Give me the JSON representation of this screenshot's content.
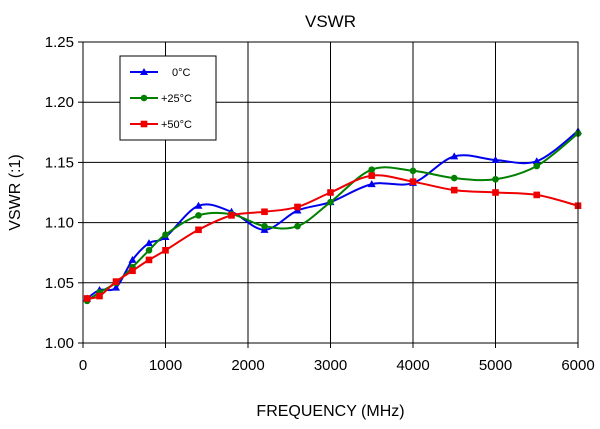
{
  "chart_data": {
    "type": "line",
    "title": "VSWR",
    "xlabel": "FREQUENCY (MHz)",
    "ylabel": "VSWR (:1)",
    "xlim": [
      0,
      6000
    ],
    "ylim": [
      1.0,
      1.25
    ],
    "xticks": [
      0,
      1000,
      2000,
      3000,
      4000,
      5000,
      6000
    ],
    "yticks": [
      1.0,
      1.05,
      1.1,
      1.15,
      1.2,
      1.25
    ],
    "xtick_labels": [
      "0",
      "1000",
      "2000",
      "3000",
      "4000",
      "5000",
      "6000"
    ],
    "ytick_labels": [
      "1.00",
      "1.05",
      "1.10",
      "1.15",
      "1.20",
      "1.25"
    ],
    "grid": true,
    "legend_position": "top-left",
    "series": [
      {
        "name": "0°C",
        "color": "#0000ee",
        "marker": "triangle",
        "x": [
          50,
          200,
          400,
          600,
          800,
          1000,
          1400,
          1800,
          2200,
          2600,
          3000,
          3500,
          4000,
          4500,
          5000,
          5500,
          6000
        ],
        "y": [
          1.037,
          1.044,
          1.046,
          1.069,
          1.083,
          1.088,
          1.114,
          1.109,
          1.094,
          1.11,
          1.117,
          1.132,
          1.133,
          1.155,
          1.152,
          1.151,
          1.176
        ]
      },
      {
        "name": "+25°C",
        "color": "#008000",
        "marker": "circle",
        "x": [
          50,
          200,
          400,
          600,
          800,
          1000,
          1400,
          1800,
          2200,
          2600,
          3000,
          3500,
          4000,
          4500,
          5000,
          5500,
          6000
        ],
        "y": [
          1.035,
          1.042,
          1.05,
          1.063,
          1.077,
          1.09,
          1.106,
          1.107,
          1.097,
          1.097,
          1.117,
          1.144,
          1.143,
          1.137,
          1.136,
          1.147,
          1.174
        ]
      },
      {
        "name": "+50°C",
        "color": "#ee0000",
        "marker": "square",
        "x": [
          50,
          200,
          400,
          600,
          800,
          1000,
          1400,
          1800,
          2200,
          2600,
          3000,
          3500,
          4000,
          4500,
          5000,
          5500,
          6000
        ],
        "y": [
          1.037,
          1.039,
          1.051,
          1.06,
          1.069,
          1.077,
          1.094,
          1.106,
          1.109,
          1.113,
          1.125,
          1.139,
          1.134,
          1.127,
          1.125,
          1.123,
          1.114
        ]
      }
    ]
  }
}
